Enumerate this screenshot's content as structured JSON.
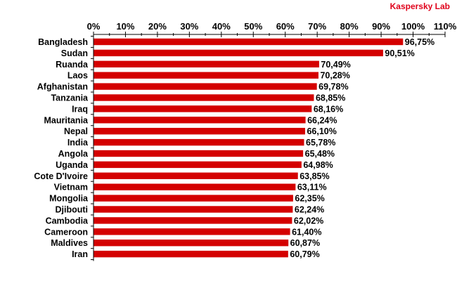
{
  "brand": {
    "text": "Kaspersky Lab",
    "color": "#e0001a"
  },
  "chart_data": {
    "type": "bar",
    "orientation": "horizontal",
    "title": "",
    "xlabel": "",
    "ylabel": "",
    "xlim": [
      0,
      110
    ],
    "x_ticks": [
      "0%",
      "10%",
      "20%",
      "30%",
      "40%",
      "50%",
      "60%",
      "70%",
      "80%",
      "90%",
      "100%",
      "110%"
    ],
    "x_axis_position": "top",
    "grid": false,
    "legend": "none",
    "bar_color": "#d40000",
    "categories": [
      "Bangladesh",
      "Sudan",
      "Ruanda",
      "Laos",
      "Afghanistan",
      "Tanzania",
      "Iraq",
      "Mauritania",
      "Nepal",
      "India",
      "Angola",
      "Uganda",
      "Cote D'Ivoire",
      "Vietnam",
      "Mongolia",
      "Djibouti",
      "Cambodia",
      "Cameroon",
      "Maldives",
      "Iran"
    ],
    "values": [
      96.75,
      90.51,
      70.49,
      70.28,
      69.78,
      68.85,
      68.16,
      66.24,
      66.1,
      65.78,
      65.48,
      64.98,
      63.85,
      63.11,
      62.35,
      62.24,
      62.02,
      61.4,
      60.87,
      60.79
    ],
    "labels": [
      "96,75%",
      "90,51%",
      "70,49%",
      "70,28%",
      "69,78%",
      "68,85%",
      "68,16%",
      "66,24%",
      "66,10%",
      "65,78%",
      "65,48%",
      "64,98%",
      "63,85%",
      "63,11%",
      "62,35%",
      "62,24%",
      "62,02%",
      "61,40%",
      "60,87%",
      "60,79%"
    ]
  }
}
